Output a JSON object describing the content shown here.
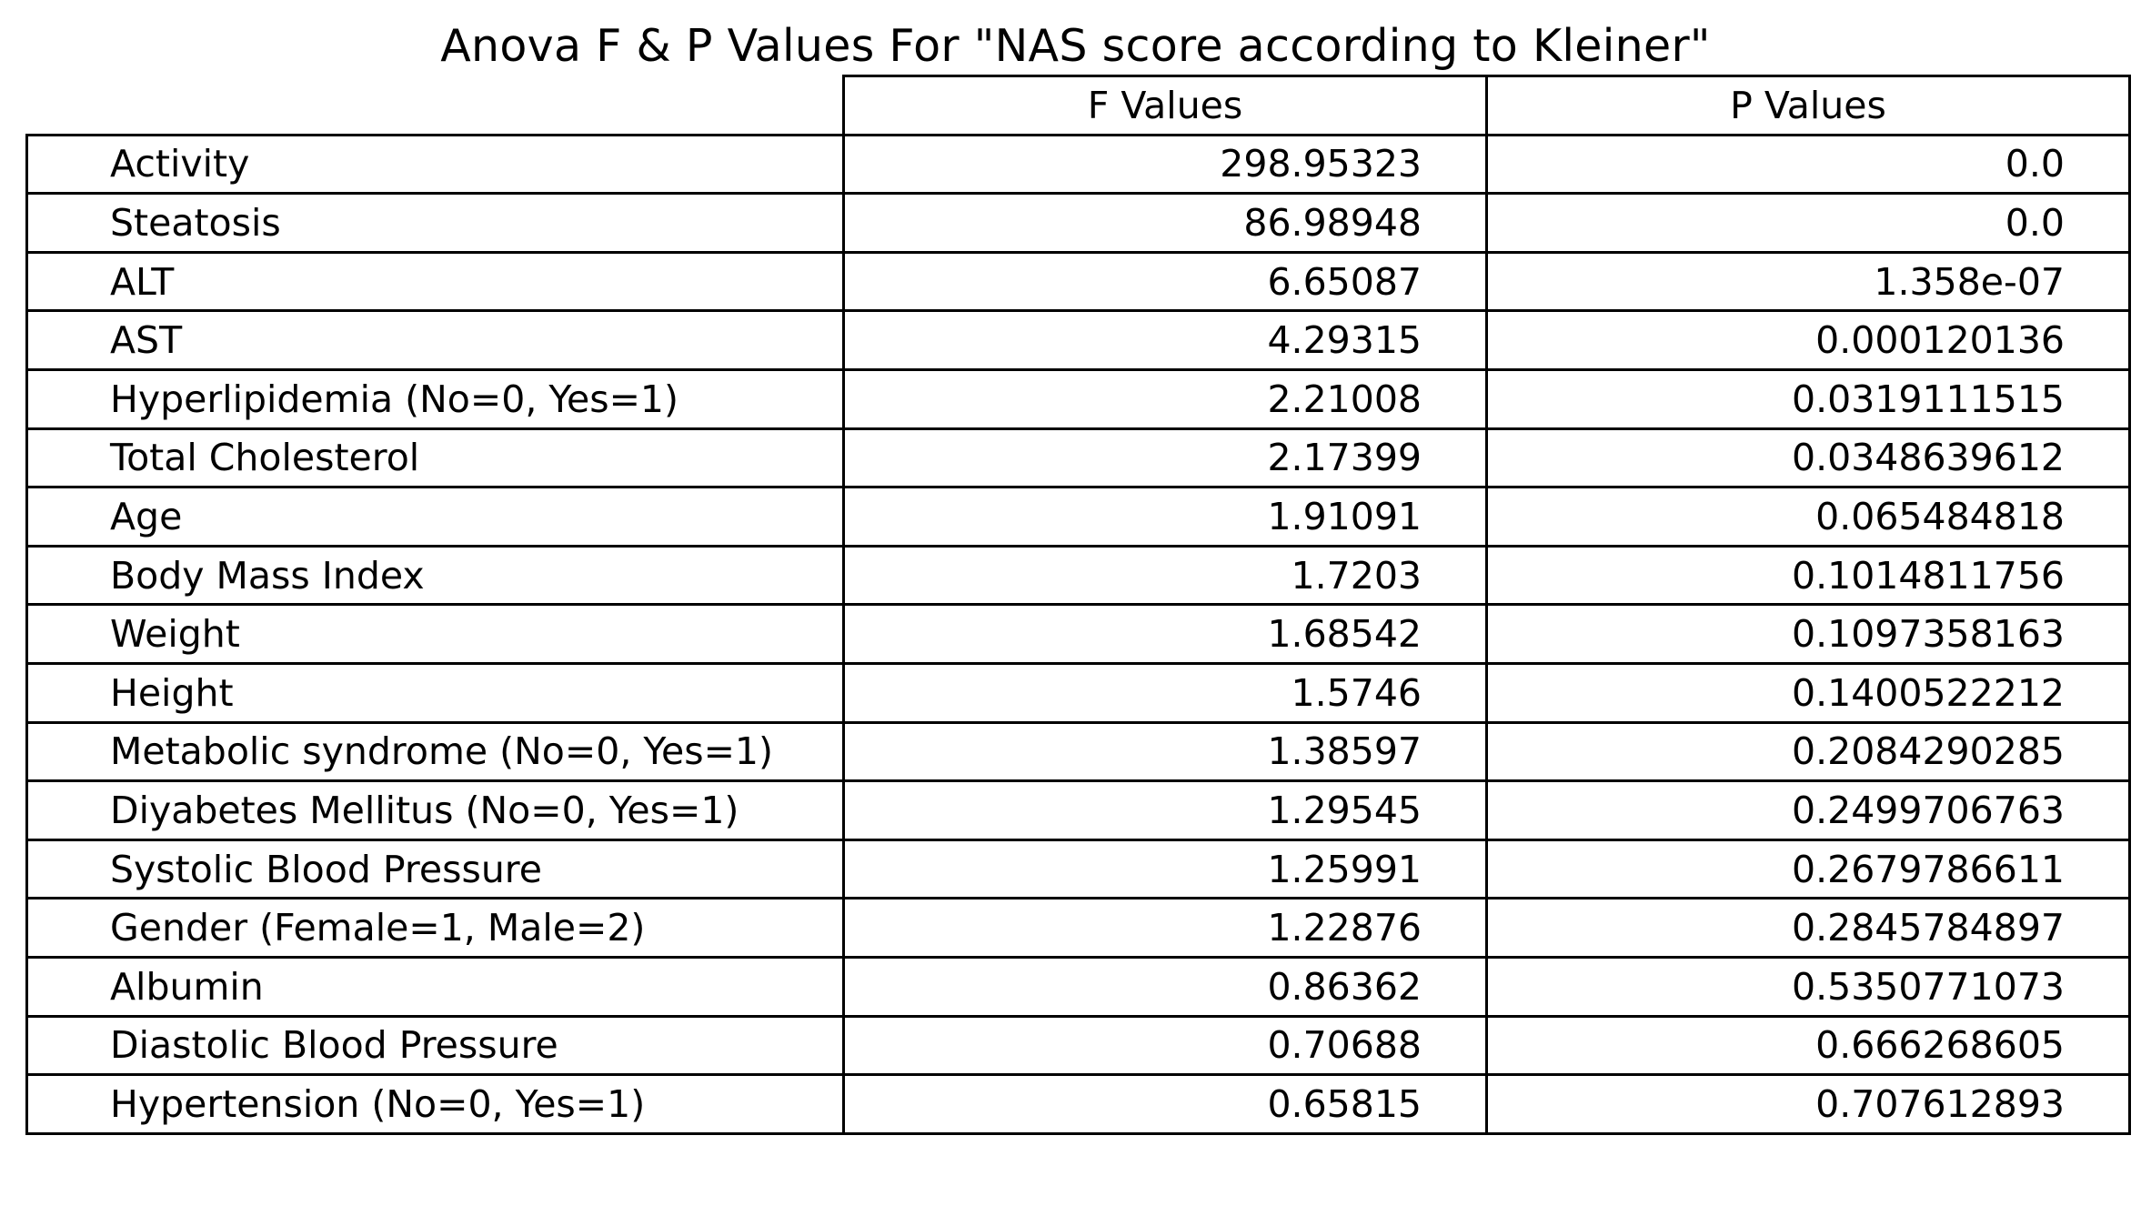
{
  "chart_data": {
    "type": "table",
    "title": "Anova F & P Values For \"NAS score according to Kleiner\"",
    "columns": [
      "",
      "F Values",
      "P Values"
    ],
    "rows": [
      {
        "label": "Activity",
        "f": "298.95323",
        "p": "0.0"
      },
      {
        "label": "Steatosis",
        "f": "86.98948",
        "p": "0.0"
      },
      {
        "label": "ALT",
        "f": "6.65087",
        "p": "1.358e-07"
      },
      {
        "label": "AST",
        "f": "4.29315",
        "p": "0.000120136"
      },
      {
        "label": "Hyperlipidemia (No=0, Yes=1)",
        "f": "2.21008",
        "p": "0.0319111515"
      },
      {
        "label": "Total Cholesterol",
        "f": "2.17399",
        "p": "0.0348639612"
      },
      {
        "label": "Age",
        "f": "1.91091",
        "p": "0.065484818"
      },
      {
        "label": "Body Mass Index",
        "f": "1.7203",
        "p": "0.1014811756"
      },
      {
        "label": "Weight",
        "f": "1.68542",
        "p": "0.1097358163"
      },
      {
        "label": "Height",
        "f": "1.5746",
        "p": "0.1400522212"
      },
      {
        "label": "Metabolic syndrome (No=0, Yes=1)",
        "f": "1.38597",
        "p": "0.2084290285"
      },
      {
        "label": "Diyabetes Mellitus (No=0, Yes=1)",
        "f": "1.29545",
        "p": "0.2499706763"
      },
      {
        "label": "Systolic Blood Pressure",
        "f": "1.25991",
        "p": "0.2679786611"
      },
      {
        "label": "Gender (Female=1, Male=2)",
        "f": "1.22876",
        "p": "0.2845784897"
      },
      {
        "label": "Albumin",
        "f": "0.86362",
        "p": "0.5350771073"
      },
      {
        "label": "Diastolic Blood Pressure",
        "f": "0.70688",
        "p": "0.666268605"
      },
      {
        "label": "Hypertension (No=0, Yes=1)",
        "f": "0.65815",
        "p": "0.707612893"
      }
    ]
  }
}
